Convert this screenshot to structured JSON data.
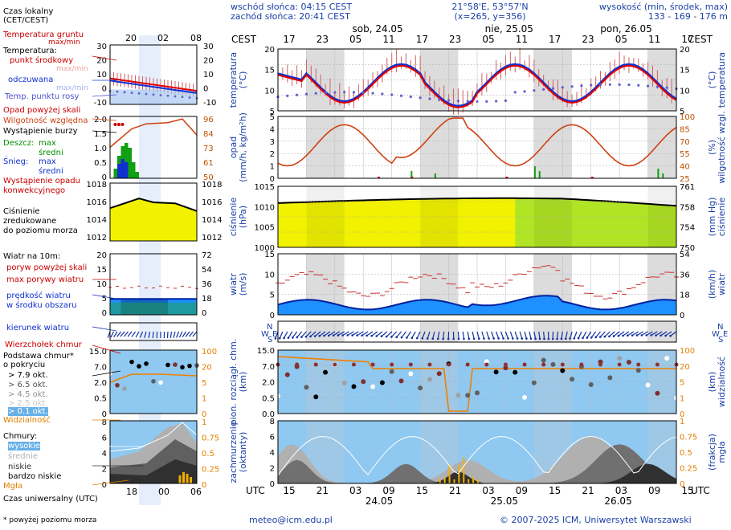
{
  "header": {
    "sunrise": "wschód słońca: 04:15 CEST",
    "sunset": "zachód słońca: 20:41 CEST",
    "coords": "21°58'E, 53°57'N",
    "grid": "(x=265,  y=356)",
    "elevation_label": "wysokość (min, środek, max)",
    "elevation_values": "133 - 169 - 176 m"
  },
  "time": {
    "cest_label": "CEST",
    "utc_label": "UTC",
    "days_top": [
      "sob, 24.05",
      "nie, 25.05",
      "pon, 26.05"
    ],
    "hours_top": [
      "17",
      "23",
      "05",
      "11",
      "17",
      "23",
      "05",
      "11",
      "17",
      "23",
      "05",
      "11",
      "17"
    ],
    "hours_bottom": [
      "15",
      "21",
      "03",
      "09",
      "15",
      "21",
      "03",
      "09",
      "15",
      "21",
      "03",
      "09",
      "15"
    ],
    "days_bottom": [
      "24.05",
      "25.05",
      "26.05"
    ]
  },
  "legend": {
    "czas_lokalny": [
      "Czas lokalny",
      "(CET/CEST)"
    ],
    "czas_ticks": [
      "20",
      "02",
      "08"
    ],
    "czas_utc": "Czas uniwersalny (UTC)",
    "utc_ticks": [
      "18",
      "00",
      "06"
    ],
    "temp_ground": [
      "Temperatura gruntu",
      "max/min"
    ],
    "temperatura": "Temperatura:",
    "punkt_srodkowy": "punkt środkowy",
    "max_min_1": "max/min",
    "odczuwana": "odczuwana",
    "max_min_2": "max/min",
    "temp_rosy": "Temp. punktu rosy",
    "temp_left_ticks": [
      "30",
      "20",
      "10",
      "0",
      "-10"
    ],
    "temp_right_ticks": [
      "30",
      "20",
      "10",
      "0",
      "-10"
    ],
    "opad_powyzej": "Opad powyżej skali",
    "wilgotnosc": "Wilgotność względna",
    "burza": "Wystąpienie burzy",
    "deszcz": "Deszcz:",
    "max": "max",
    "sredni": "średni",
    "snieg": "Śnieg:",
    "max2": "max",
    "sredni2": "średni",
    "wyst_opadu": [
      "Wystąpienie opadu",
      "konwekcyjnego"
    ],
    "opad_left_ticks": [
      "2.0",
      "1.5",
      "1.0",
      "0.5",
      "0"
    ],
    "opad_right_ticks": [
      "96",
      "84",
      "73",
      "61",
      "50"
    ],
    "cisnienie": [
      "Ciśnienie",
      "zredukowane",
      "do poziomu morza"
    ],
    "press_left_ticks": [
      "1018",
      "1016",
      "1014",
      "1012"
    ],
    "press_right_ticks": [
      "1018",
      "1016",
      "1014",
      "1012"
    ],
    "wiatr_na": "Wiatr na 10m:",
    "poryw_powyzej": "poryw powyżej skali",
    "max_porywy": "max porywy wiatru",
    "predkosc": [
      "prędkość wiatru",
      "w środku obszaru"
    ],
    "wind_left_ticks": [
      "20",
      "15",
      "10",
      "5",
      "0"
    ],
    "wind_right_ticks": [
      "72",
      "54",
      "36",
      "18",
      "0"
    ],
    "kierunek": "kierunek wiatru",
    "wierzcholek": "Wierzchołek chmur",
    "podstawa": [
      "Podstawa chmur*",
      "o pokryciu"
    ],
    "okt": [
      "> 7.9 okt.",
      "> 6.5 okt.",
      "> 4.5 okt.",
      "> 2.5 okt.",
      "> 0.1 okt."
    ],
    "widzialnosc": "Widzialność",
    "cloud_left_ticks": [
      "15.0",
      "7.0",
      "2.0",
      "0.5",
      "0"
    ],
    "cloud_right_ticks": [
      "100",
      "20",
      "5",
      "1",
      "0"
    ],
    "chmury": "Chmury:",
    "wysokie": "wysokie",
    "srednie": "średnie",
    "niskie": "niskie",
    "bardzo_niskie": "bardzo niskie",
    "mgla": "Mgła",
    "oct_left_ticks": [
      "8",
      "6",
      "4",
      "2",
      "0"
    ],
    "oct_right_ticks": [
      "1",
      "0.75",
      "0.5",
      "0.25",
      "0"
    ]
  },
  "panels": {
    "temp": {
      "left": [
        "temperatura",
        "(°C)"
      ],
      "right": [
        "(°C)",
        "temperatura"
      ],
      "left_ticks": [
        "20",
        "15",
        "10",
        "5"
      ],
      "right_ticks": [
        "20",
        "15",
        "10",
        "5"
      ]
    },
    "opad": {
      "left": [
        "opad",
        "(mm/h, kg/m²h)"
      ],
      "right": [
        "(%)",
        "wilgotność wzgl."
      ],
      "left_ticks": [
        "5",
        "4",
        "3",
        "2",
        "1",
        "0"
      ],
      "right_ticks": [
        "100",
        "85",
        "70",
        "55",
        "40",
        "25"
      ]
    },
    "press": {
      "left": [
        "ciśnienie",
        "(hPa)"
      ],
      "right": [
        "(mm Hg)",
        "ciśnienie"
      ],
      "left_ticks": [
        "1015",
        "1010",
        "1005",
        "1000"
      ],
      "right_ticks": [
        "761",
        "758",
        "754",
        "750"
      ]
    },
    "wind": {
      "left": [
        "wiatr",
        "(m/s)"
      ],
      "right": [
        "(km/h)",
        "wiatr"
      ],
      "left_ticks": [
        "15",
        "10",
        "5",
        "0"
      ],
      "right_ticks": [
        "54",
        "36",
        "18",
        "0"
      ]
    },
    "dir": {
      "letters": [
        "N",
        "W",
        "S",
        "E"
      ]
    },
    "cloud": {
      "left": [
        "pion. rozciągł. chm.",
        "(km)"
      ],
      "right": [
        "(km)",
        "widzialność"
      ],
      "left_ticks": [
        "15.0",
        "7.0",
        "2.0",
        "0.5",
        "0.0"
      ],
      "right_ticks": [
        "100",
        "20",
        "5",
        "1",
        "0"
      ]
    },
    "oct": {
      "left": [
        "zachmurzenie",
        "(oktanty)"
      ],
      "right": [
        "(frakcja)",
        "mgła"
      ],
      "left_ticks": [
        "8",
        "6",
        "4",
        "2",
        "0"
      ],
      "right_ticks": [
        "1",
        "0.75",
        "0.5",
        "0.25",
        "0"
      ]
    }
  },
  "footer": {
    "note": "* powyżej poziomu morza",
    "email": "meteo@icm.edu.pl",
    "copyright": "© 2007-2025 ICM, Uniwersytet Warszawski"
  },
  "colors": {
    "blue_label": "#1a3fa6",
    "red_label": "#cc0000",
    "temp_line": "#e00000",
    "feel_line": "#1030d0",
    "humidity": "#d04010",
    "pressure_fill": "#f2f200",
    "pressure_fill_green": "#a6e22c",
    "wind_fill": "#1e90ff",
    "sky": "#8fc8f0",
    "night_band": "#d8d8d8"
  }
}
